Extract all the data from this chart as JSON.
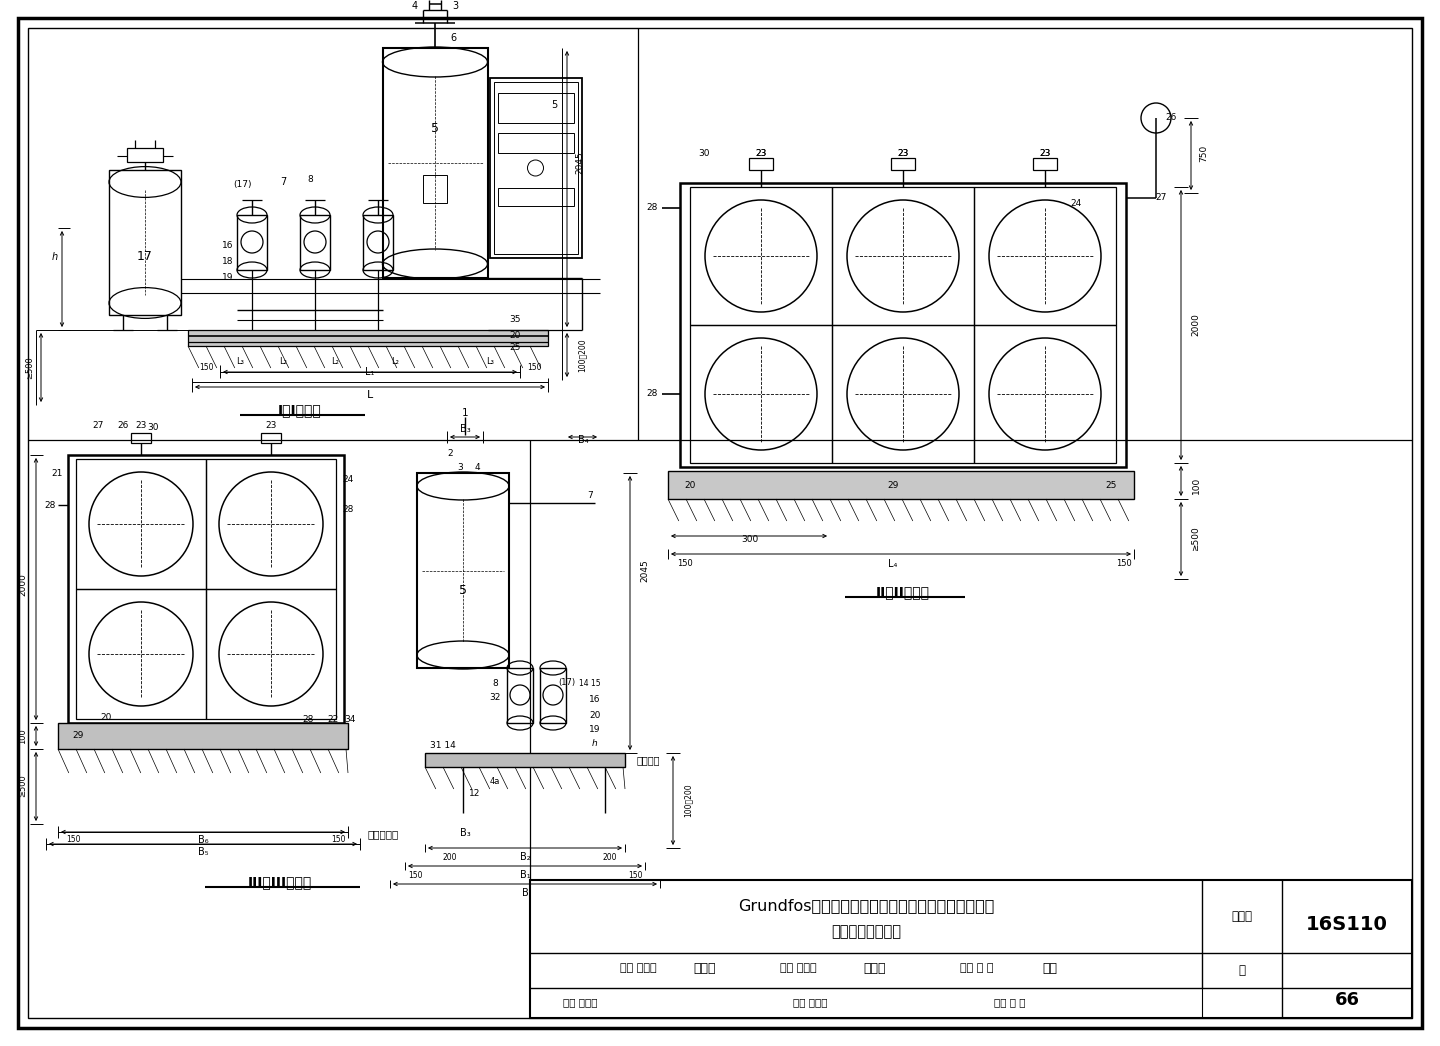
{
  "bg": "#ffffff",
  "title_main": "Grundfos系列筱式全变频叠压供水设备外形及安装图",
  "title_sub": "（两用一备泵组）",
  "doc_number": "16S110",
  "page": "66",
  "s1": "I－I剖视图",
  "s2": "II－II剖视图",
  "s3": "III－III剖视图",
  "fig_label": "图集号",
  "page_label": "页",
  "row2": "审核 罗定元",
  "row2b": "校对 吴海林",
  "row2c": "设计 吴 敏",
  "sig1": "书平之",
  "sig2": "大队长",
  "sig3": "吴敏"
}
